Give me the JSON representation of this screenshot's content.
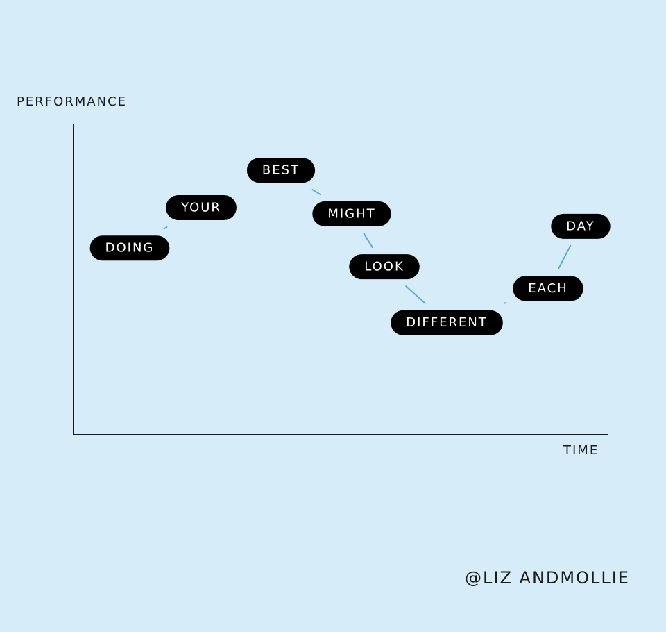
{
  "chart_data": {
    "type": "line",
    "xlabel": "TIME",
    "ylabel": "PERFORMANCE",
    "grid": false,
    "labels": [
      "DOING",
      "YOUR",
      "BEST",
      "MIGHT",
      "LOOK",
      "DIFFERENT",
      "EACH",
      "DAY"
    ],
    "x": [
      1,
      2,
      3,
      4,
      5,
      6,
      7,
      8
    ],
    "y": [
      6,
      7.3,
      8.5,
      7.1,
      5.4,
      3.6,
      4.7,
      6.7
    ],
    "ylim": [
      0,
      10
    ],
    "colors": {
      "connector": "#5aaed0",
      "pill": "#000000",
      "axis": "#1a1a1a"
    }
  },
  "credit": "@LIZ ANDMOLLIE"
}
